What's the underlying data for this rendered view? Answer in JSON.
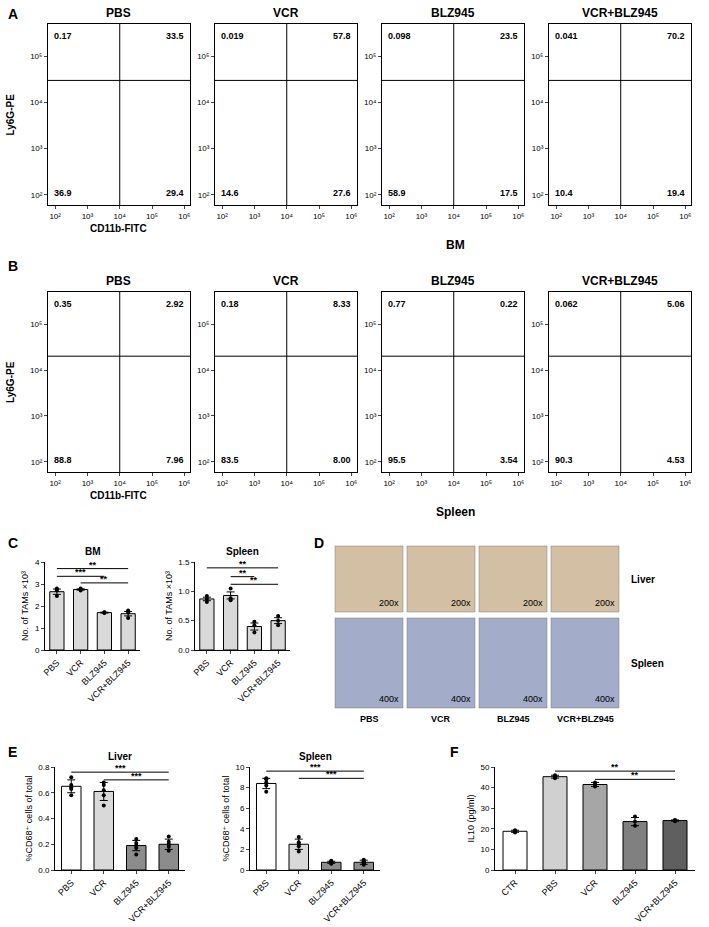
{
  "chart_data": [
    {
      "type": "flow",
      "panel": "A",
      "title": "PBS",
      "xlabel": "CD11b-FITC",
      "ylabel": "Ly6G-PE",
      "log": true,
      "grid": false,
      "xlim": [
        60,
        1500000
      ],
      "ylim": [
        60,
        500000
      ],
      "xticks": [
        {
          "value": 100,
          "label": "10²"
        },
        {
          "value": 1000,
          "label": "10³"
        },
        {
          "value": 10000,
          "label": "10⁴"
        },
        {
          "value": 100000,
          "label": "10⁵"
        },
        {
          "value": 1000000,
          "label": "10⁶"
        }
      ],
      "yticks": [
        {
          "value": 100,
          "label": "10²"
        },
        {
          "value": 1000,
          "label": "10³"
        },
        {
          "value": 10000,
          "label": "10⁴"
        },
        {
          "value": 100000,
          "label": "10⁵"
        }
      ],
      "quadrant_x": 10000,
      "quadrant_y": 30000,
      "quadrants": {
        "upper_left": 0.17,
        "upper_right": 33.5,
        "lower_left": 36.9,
        "lower_right": 29.4
      }
    },
    {
      "type": "flow",
      "panel": "A",
      "title": "VCR",
      "log": true,
      "grid": false,
      "xlim": [
        60,
        1500000
      ],
      "ylim": [
        60,
        500000
      ],
      "xticks": [
        {
          "value": 100,
          "label": "10²"
        },
        {
          "value": 1000,
          "label": "10³"
        },
        {
          "value": 10000,
          "label": "10⁴"
        },
        {
          "value": 100000,
          "label": "10⁵"
        },
        {
          "value": 1000000,
          "label": "10⁶"
        }
      ],
      "yticks": [
        {
          "value": 100,
          "label": "10²"
        },
        {
          "value": 1000,
          "label": "10³"
        },
        {
          "value": 10000,
          "label": "10⁴"
        },
        {
          "value": 100000,
          "label": "10⁵"
        }
      ],
      "quadrant_x": 10000,
      "quadrant_y": 30000,
      "quadrants": {
        "upper_left": 0.019,
        "upper_right": 57.8,
        "lower_left": 14.6,
        "lower_right": 27.6
      }
    },
    {
      "type": "flow",
      "panel": "A",
      "title": "BLZ945",
      "log": true,
      "grid": false,
      "xlim": [
        60,
        1500000
      ],
      "ylim": [
        60,
        500000
      ],
      "xticks": [
        {
          "value": 100,
          "label": "10²"
        },
        {
          "value": 1000,
          "label": "10³"
        },
        {
          "value": 10000,
          "label": "10⁴"
        },
        {
          "value": 100000,
          "label": "10⁵"
        },
        {
          "value": 1000000,
          "label": "10⁶"
        }
      ],
      "yticks": [
        {
          "value": 100,
          "label": "10²"
        },
        {
          "value": 1000,
          "label": "10³"
        },
        {
          "value": 10000,
          "label": "10⁴"
        },
        {
          "value": 100000,
          "label": "10⁵"
        }
      ],
      "quadrant_x": 10000,
      "quadrant_y": 30000,
      "quadrants": {
        "upper_left": 0.098,
        "upper_right": 23.5,
        "lower_left": 58.9,
        "lower_right": 17.5
      }
    },
    {
      "type": "flow",
      "panel": "A",
      "title": "VCR+BLZ945",
      "log": true,
      "grid": false,
      "xlim": [
        60,
        1500000
      ],
      "ylim": [
        60,
        500000
      ],
      "xticks": [
        {
          "value": 100,
          "label": "10²"
        },
        {
          "value": 1000,
          "label": "10³"
        },
        {
          "value": 10000,
          "label": "10⁴"
        },
        {
          "value": 100000,
          "label": "10⁵"
        },
        {
          "value": 1000000,
          "label": "10⁶"
        }
      ],
      "yticks": [
        {
          "value": 100,
          "label": "10²"
        },
        {
          "value": 1000,
          "label": "10³"
        },
        {
          "value": 10000,
          "label": "10⁴"
        },
        {
          "value": 100000,
          "label": "10⁵"
        }
      ],
      "quadrant_x": 10000,
      "quadrant_y": 30000,
      "quadrants": {
        "upper_left": 0.041,
        "upper_right": 70.2,
        "lower_left": 10.4,
        "lower_right": 19.4
      }
    },
    {
      "type": "flow",
      "panel": "B",
      "title": "PBS",
      "xlabel": "CD11b-FITC",
      "ylabel": "Ly6G-PE",
      "log": true,
      "grid": false,
      "xlim": [
        60,
        1500000
      ],
      "ylim": [
        60,
        500000
      ],
      "xticks": [
        {
          "value": 100,
          "label": "10²"
        },
        {
          "value": 1000,
          "label": "10³"
        },
        {
          "value": 10000,
          "label": "10⁴"
        },
        {
          "value": 100000,
          "label": "10⁵"
        },
        {
          "value": 1000000,
          "label": "10⁶"
        }
      ],
      "yticks": [
        {
          "value": 100,
          "label": "10²"
        },
        {
          "value": 1000,
          "label": "10³"
        },
        {
          "value": 10000,
          "label": "10⁴"
        },
        {
          "value": 100000,
          "label": "10⁵"
        }
      ],
      "quadrant_x": 10000,
      "quadrant_y": 20000,
      "quadrants": {
        "upper_left": 0.35,
        "upper_right": 2.92,
        "lower_left": 88.8,
        "lower_right": 7.96
      }
    },
    {
      "type": "flow",
      "panel": "B",
      "title": "VCR",
      "log": true,
      "grid": false,
      "xlim": [
        60,
        1500000
      ],
      "ylim": [
        60,
        500000
      ],
      "xticks": [
        {
          "value": 100,
          "label": "10²"
        },
        {
          "value": 1000,
          "label": "10³"
        },
        {
          "value": 10000,
          "label": "10⁴"
        },
        {
          "value": 100000,
          "label": "10⁵"
        },
        {
          "value": 1000000,
          "label": "10⁶"
        }
      ],
      "yticks": [
        {
          "value": 100,
          "label": "10²"
        },
        {
          "value": 1000,
          "label": "10³"
        },
        {
          "value": 10000,
          "label": "10⁴"
        },
        {
          "value": 100000,
          "label": "10⁵"
        }
      ],
      "quadrant_x": 10000,
      "quadrant_y": 20000,
      "quadrants": {
        "upper_left": 0.18,
        "upper_right": 8.33,
        "lower_left": 83.5,
        "lower_right": {
          "value": 8,
          "label": "8.00"
        }
      }
    },
    {
      "type": "flow",
      "panel": "B",
      "title": "BLZ945",
      "log": true,
      "grid": false,
      "xlim": [
        60,
        1500000
      ],
      "ylim": [
        60,
        500000
      ],
      "xticks": [
        {
          "value": 100,
          "label": "10²"
        },
        {
          "value": 1000,
          "label": "10³"
        },
        {
          "value": 10000,
          "label": "10⁴"
        },
        {
          "value": 100000,
          "label": "10⁵"
        },
        {
          "value": 1000000,
          "label": "10⁶"
        }
      ],
      "yticks": [
        {
          "value": 100,
          "label": "10²"
        },
        {
          "value": 1000,
          "label": "10³"
        },
        {
          "value": 10000,
          "label": "10⁴"
        },
        {
          "value": 100000,
          "label": "10⁵"
        }
      ],
      "quadrant_x": 10000,
      "quadrant_y": 20000,
      "quadrants": {
        "upper_left": 0.77,
        "upper_right": 0.22,
        "lower_left": 95.5,
        "lower_right": 3.54
      }
    },
    {
      "type": "flow",
      "panel": "B",
      "title": "VCR+BLZ945",
      "log": true,
      "grid": false,
      "xlim": [
        60,
        1500000
      ],
      "ylim": [
        60,
        500000
      ],
      "xticks": [
        {
          "value": 100,
          "label": "10²"
        },
        {
          "value": 1000,
          "label": "10³"
        },
        {
          "value": 10000,
          "label": "10⁴"
        },
        {
          "value": 100000,
          "label": "10⁵"
        },
        {
          "value": 1000000,
          "label": "10⁶"
        }
      ],
      "yticks": [
        {
          "value": 100,
          "label": "10²"
        },
        {
          "value": 1000,
          "label": "10³"
        },
        {
          "value": 10000,
          "label": "10⁴"
        },
        {
          "value": 100000,
          "label": "10⁵"
        }
      ],
      "quadrant_x": 10000,
      "quadrant_y": 20000,
      "quadrants": {
        "upper_left": 0.062,
        "upper_right": 5.06,
        "lower_left": 90.3,
        "lower_right": 4.53
      }
    },
    {
      "type": "bar",
      "panel": "C",
      "title": "BM",
      "ylabel": "No. of TAMs ×10³",
      "grid": false,
      "color": "#d9d9d9",
      "categories": [
        "PBS",
        "VCR",
        "BLZ945",
        "VCR+BLZ945"
      ],
      "values": [
        2.65,
        2.75,
        1.7,
        1.65
      ],
      "errors": [
        0.12,
        0.03,
        0.02,
        0.1
      ],
      "points": [
        [
          2.45,
          2.7,
          2.8
        ],
        [
          2.7,
          2.75,
          2.8
        ],
        [
          1.68,
          1.7,
          1.72
        ],
        [
          1.45,
          1.7,
          1.8
        ]
      ],
      "ylim": [
        0,
        4
      ],
      "yticks": [
        0,
        1,
        2,
        3,
        4
      ],
      "significance": [
        {
          "from": "PBS",
          "to": "VCR+BLZ945",
          "y": 3.7,
          "label": "**"
        },
        {
          "from": "PBS",
          "to": "BLZ945",
          "y": 3.35,
          "label": "***"
        },
        {
          "from": "VCR",
          "to": "VCR+BLZ945",
          "y": 3.05,
          "label": "**"
        }
      ]
    },
    {
      "type": "bar",
      "panel": "C",
      "title": "Spleen",
      "ylabel": "No. of TAMs ×10³",
      "grid": false,
      "color": "#d9d9d9",
      "categories": [
        "PBS",
        "VCR",
        "BLZ945",
        "VCR+BLZ945"
      ],
      "values": [
        0.87,
        0.93,
        0.4,
        0.5
      ],
      "errors": [
        0.03,
        0.06,
        0.06,
        0.05
      ],
      "points": [
        [
          0.82,
          0.87,
          0.92
        ],
        [
          0.85,
          0.88,
          1.05
        ],
        [
          0.3,
          0.42,
          0.48
        ],
        [
          0.42,
          0.5,
          0.58
        ]
      ],
      "ylim": [
        0,
        1.5
      ],
      "yticks": [
        {
          "value": 0,
          "label": "0.0"
        },
        0.5,
        {
          "value": 1,
          "label": "1.0"
        },
        1.5
      ],
      "significance": [
        {
          "from": "PBS",
          "to": "VCR+BLZ945",
          "y": 1.4,
          "label": "**"
        },
        {
          "from": "VCR",
          "to": "BLZ945",
          "y": 1.25,
          "label": "**"
        },
        {
          "from": "VCR",
          "to": "VCR+BLZ945",
          "y": 1.12,
          "label": "**"
        }
      ]
    },
    {
      "type": "bar",
      "panel": "E",
      "title": "Liver",
      "ylabel": "%CD68⁺ cells of total",
      "grid": false,
      "colors": [
        "#ffffff",
        "#d9d9d9",
        "#8c8c8c",
        "#8c8c8c"
      ],
      "categories": [
        "PBS",
        "VCR",
        "BLZ945",
        "VCR+BLZ945"
      ],
      "values": [
        0.65,
        0.61,
        0.19,
        0.2
      ],
      "errors": [
        0.05,
        0.07,
        0.04,
        0.04
      ],
      "points": [
        [
          0.58,
          0.63,
          0.64,
          0.66,
          0.72
        ],
        [
          0.5,
          0.58,
          0.62,
          0.66,
          0.68
        ],
        [
          0.12,
          0.17,
          0.19,
          0.21,
          0.24
        ],
        [
          0.15,
          0.18,
          0.2,
          0.22,
          0.26
        ]
      ],
      "ylim": [
        0,
        0.8
      ],
      "yticks": [
        {
          "value": 0,
          "label": "0.0"
        },
        0.2,
        0.4,
        0.6,
        0.8
      ],
      "significance": [
        {
          "from": "PBS",
          "to": "VCR+BLZ945",
          "y": 0.76,
          "label": "***"
        },
        {
          "from": "VCR",
          "to": "VCR+BLZ945",
          "y": 0.7,
          "label": "***"
        }
      ]
    },
    {
      "type": "bar",
      "panel": "E",
      "title": "Spleen",
      "ylabel": "%CD68⁺ cells of total",
      "grid": false,
      "colors": [
        "#ffffff",
        "#d9d9d9",
        "#8c8c8c",
        "#8c8c8c"
      ],
      "categories": [
        "PBS",
        "VCR",
        "BLZ945",
        "VCR+BLZ945"
      ],
      "values": [
        8.4,
        2.5,
        0.75,
        0.75
      ],
      "errors": [
        0.5,
        0.5,
        0.1,
        0.2
      ],
      "points": [
        [
          7.6,
          8.2,
          8.5,
          8.8,
          8.9
        ],
        [
          1.8,
          2.3,
          2.5,
          2.7,
          3.2
        ],
        [
          0.6,
          0.7,
          0.75,
          0.8,
          0.9
        ],
        [
          0.5,
          0.65,
          0.75,
          0.85,
          1.0
        ]
      ],
      "ylim": [
        0,
        10
      ],
      "yticks": [
        0,
        2,
        4,
        6,
        8,
        10
      ],
      "significance": [
        {
          "from": "PBS",
          "to": "VCR+BLZ945",
          "y": 9.6,
          "label": "***"
        },
        {
          "from": "VCR",
          "to": "VCR+BLZ945",
          "y": 8.9,
          "label": "***"
        }
      ]
    },
    {
      "type": "bar",
      "panel": "F",
      "ylabel": "IL10 (pg/ml)",
      "grid": false,
      "colors": [
        "#ffffff",
        "#d0d0d0",
        "#a6a6a6",
        "#808080",
        "#5f5f5f"
      ],
      "categories": [
        "CTR",
        "PBS",
        "VCR",
        "BLZ945",
        "VCR+BLZ945"
      ],
      "values": [
        18.8,
        45.3,
        41.5,
        23.5,
        24.0
      ],
      "errors": [
        0.5,
        0.7,
        1.0,
        2.0,
        0.3
      ],
      "points": [
        [
          18.2,
          18.8,
          19.3
        ],
        [
          44.5,
          45.3,
          46.0
        ],
        [
          40.5,
          41.5,
          42.5
        ],
        [
          21.5,
          23.5,
          26.0
        ],
        [
          23.7,
          24.0,
          24.3
        ]
      ],
      "ylim": [
        0,
        50
      ],
      "yticks": [
        0,
        10,
        20,
        30,
        40,
        50
      ],
      "significance": [
        {
          "from": "PBS",
          "to": "VCR+BLZ945",
          "y": 48,
          "label": "**"
        },
        {
          "from": "VCR",
          "to": "VCR+BLZ945",
          "y": 44,
          "label": "**"
        }
      ]
    }
  ],
  "panel_letters": [
    "A",
    "B",
    "C",
    "D",
    "E",
    "F"
  ],
  "captions": {
    "A": "BM",
    "B": "Spleen"
  },
  "images": {
    "rows": [
      {
        "label": "Liver",
        "magnification": "200x"
      },
      {
        "label": "Spleen",
        "magnification": "400x"
      }
    ],
    "columns": [
      "PBS",
      "VCR",
      "BLZ945",
      "VCR+BLZ945"
    ]
  }
}
